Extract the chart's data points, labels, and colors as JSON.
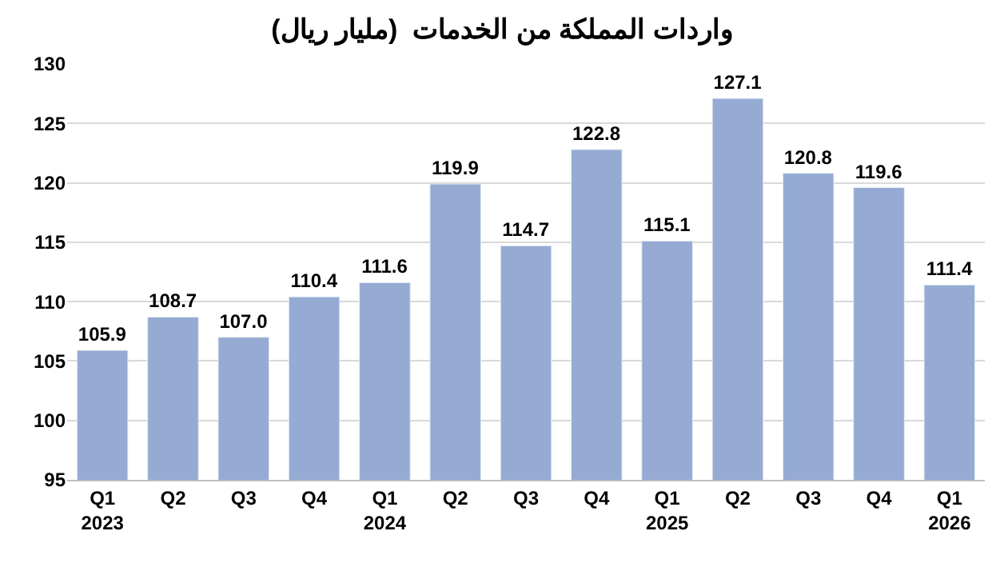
{
  "chart_data": {
    "type": "bar",
    "title": "واردات المملكة من الخدمات  (مليار ريال)",
    "categories": [
      "Q1\n2023",
      "Q2",
      "Q3",
      "Q4",
      "Q1\n2024",
      "Q2",
      "Q3",
      "Q4",
      "Q1\n2025",
      "Q2",
      "Q3",
      "Q4",
      "Q1\n2026"
    ],
    "values": [
      105.9,
      108.7,
      107.0,
      110.4,
      111.6,
      119.9,
      114.7,
      122.8,
      115.1,
      127.1,
      120.8,
      119.6,
      111.4
    ],
    "value_labels": [
      "105.9",
      "108.7",
      "107.0",
      "110.4",
      "111.6",
      "119.9",
      "114.7",
      "122.8",
      "115.1",
      "127.1",
      "120.8",
      "119.6",
      "111.4"
    ],
    "color": "#95abd3",
    "ylim": [
      95,
      130
    ],
    "yticks": [
      95,
      100,
      105,
      110,
      115,
      120,
      125,
      130
    ],
    "grid": "y",
    "legend": false
  }
}
